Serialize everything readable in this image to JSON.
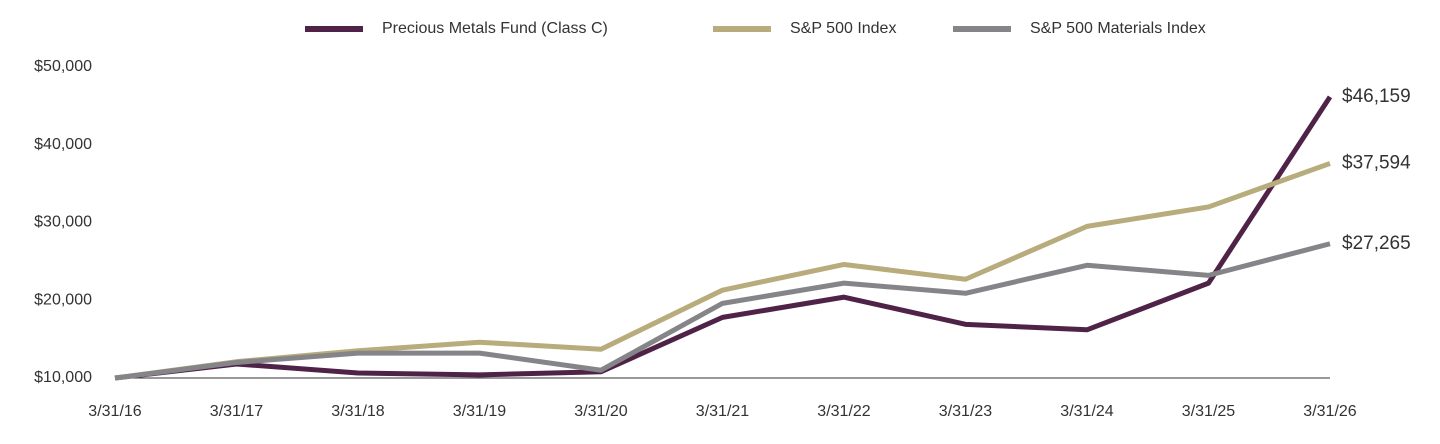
{
  "chart_data": {
    "type": "line",
    "categories": [
      "3/31/16",
      "3/31/17",
      "3/31/18",
      "3/31/19",
      "3/31/20",
      "3/31/21",
      "3/31/22",
      "3/31/23",
      "3/31/24",
      "3/31/25",
      "3/31/26"
    ],
    "series": [
      {
        "name": "Precious Metals Fund (Class C)",
        "color": "#4f2348",
        "values": [
          10000,
          11800,
          10650,
          10400,
          10800,
          17800,
          20400,
          16900,
          16200,
          22200,
          46159
        ],
        "value_labels": [
          null,
          null,
          null,
          null,
          null,
          null,
          null,
          null,
          null,
          null,
          "$46,159"
        ]
      },
      {
        "name": "S&P 500 Index",
        "color": "#b8ab7c",
        "values": [
          10000,
          12100,
          13500,
          14600,
          13700,
          21300,
          24600,
          22700,
          29500,
          32000,
          37594
        ],
        "value_labels": [
          null,
          null,
          null,
          null,
          null,
          null,
          null,
          null,
          null,
          null,
          "$37,594"
        ]
      },
      {
        "name": "S&P 500 Materials Index",
        "color": "#858589",
        "values": [
          10000,
          12000,
          13200,
          13200,
          11000,
          19600,
          22200,
          20900,
          24500,
          23200,
          27265
        ],
        "value_labels": [
          null,
          null,
          null,
          null,
          null,
          null,
          null,
          null,
          null,
          null,
          "$27,265"
        ]
      }
    ],
    "ylim": [
      10000,
      50000
    ],
    "yticks": [
      {
        "value": 10000,
        "label": "$10,000"
      },
      {
        "value": 20000,
        "label": "$20,000"
      },
      {
        "value": 30000,
        "label": "$30,000"
      },
      {
        "value": 40000,
        "label": "$40,000"
      },
      {
        "value": 50000,
        "label": "$50,000"
      }
    ],
    "grid": false
  }
}
